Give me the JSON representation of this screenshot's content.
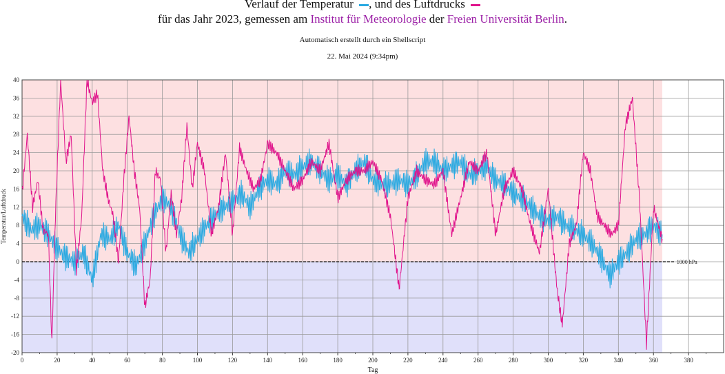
{
  "header": {
    "line1_part1": "Verlauf der Temperatur",
    "line1_part2": ", und des Luftdrucks",
    "line2_part1": "für das Jahr 2023, gemessen am",
    "line2_link1": "Institut für Meteorologie",
    "line2_part2": "der",
    "line2_link2": "Freien Universität Berlin",
    "line2_end": ".",
    "subtitle": "Automatisch erstellt durch ein Shellscript",
    "date": "22. Mai 2024 (9:34pm)"
  },
  "colors": {
    "temperature": "#29a9e1",
    "pressure": "#e0148c",
    "positive_bg": "#fde0e1",
    "negative_bg": "#e0e0fa",
    "link": "#9b1fa6"
  },
  "chart_data": {
    "type": "line",
    "title": "Verlauf der Temperatur, und des Luftdrucks",
    "xlabel": "Tag",
    "ylabel": "Temperatur/Luftdruck",
    "xlim": [
      0,
      400
    ],
    "ylim": [
      -20,
      40
    ],
    "x_ticks": [
      0,
      20,
      40,
      60,
      80,
      100,
      120,
      140,
      160,
      180,
      200,
      220,
      240,
      260,
      280,
      300,
      320,
      340,
      360,
      380
    ],
    "y_ticks": [
      -20,
      -16,
      -12,
      -8,
      -4,
      0,
      4,
      8,
      12,
      16,
      20,
      24,
      28,
      32,
      36,
      40
    ],
    "reference_line": {
      "y": 0,
      "label": "1000 hPa"
    },
    "grid": true,
    "series": [
      {
        "name": "Temperatur",
        "color": "#29a9e1",
        "x": [
          0,
          5,
          10,
          15,
          20,
          25,
          30,
          35,
          40,
          45,
          50,
          55,
          60,
          65,
          70,
          75,
          80,
          85,
          90,
          95,
          100,
          105,
          110,
          115,
          120,
          125,
          130,
          135,
          140,
          145,
          150,
          155,
          160,
          165,
          170,
          175,
          180,
          185,
          190,
          195,
          200,
          205,
          210,
          215,
          220,
          225,
          230,
          235,
          240,
          245,
          250,
          255,
          260,
          265,
          270,
          275,
          280,
          285,
          290,
          295,
          300,
          305,
          310,
          315,
          320,
          325,
          330,
          335,
          340,
          345,
          350,
          355,
          360,
          365
        ],
        "y": [
          10,
          7,
          8,
          6,
          3,
          1,
          0,
          2,
          -4,
          6,
          5,
          8,
          2,
          -1,
          4,
          10,
          14,
          12,
          6,
          2,
          5,
          8,
          10,
          12,
          13,
          15,
          12,
          16,
          18,
          17,
          20,
          19,
          21,
          22,
          20,
          18,
          19,
          17,
          20,
          22,
          18,
          17,
          17,
          18,
          17,
          19,
          22,
          22,
          20,
          21,
          22,
          19,
          20,
          21,
          18,
          17,
          15,
          14,
          12,
          10,
          9,
          10,
          8,
          7,
          6,
          4,
          1,
          -3,
          0,
          2,
          5,
          6,
          8,
          6
        ]
      },
      {
        "name": "Luftdruck",
        "color": "#e0148c",
        "x": [
          0,
          3,
          6,
          9,
          12,
          15,
          17,
          19,
          22,
          25,
          28,
          31,
          34,
          37,
          40,
          43,
          46,
          49,
          52,
          55,
          58,
          61,
          64,
          67,
          70,
          73,
          76,
          79,
          82,
          85,
          88,
          91,
          94,
          97,
          100,
          104,
          108,
          112,
          116,
          120,
          124,
          128,
          132,
          136,
          140,
          145,
          150,
          155,
          160,
          165,
          170,
          175,
          180,
          185,
          190,
          195,
          200,
          205,
          210,
          215,
          220,
          225,
          230,
          235,
          240,
          245,
          250,
          255,
          260,
          265,
          270,
          275,
          280,
          285,
          290,
          295,
          300,
          305,
          308,
          312,
          316,
          320,
          324,
          328,
          332,
          336,
          340,
          344,
          348,
          352,
          356,
          360,
          365
        ],
        "y": [
          15,
          28,
          12,
          18,
          7,
          6,
          -18,
          10,
          40,
          22,
          28,
          -2,
          10,
          40,
          35,
          37,
          20,
          14,
          10,
          0,
          18,
          32,
          20,
          12,
          -10,
          -4,
          20,
          18,
          2,
          15,
          6,
          14,
          30,
          16,
          26,
          20,
          6,
          12,
          24,
          6,
          25,
          20,
          16,
          18,
          26,
          24,
          20,
          16,
          18,
          22,
          20,
          26,
          14,
          18,
          20,
          20,
          22,
          18,
          10,
          -6,
          14,
          20,
          18,
          17,
          20,
          6,
          14,
          22,
          20,
          24,
          6,
          16,
          20,
          16,
          8,
          2,
          16,
          -6,
          -14,
          4,
          8,
          24,
          20,
          10,
          8,
          6,
          8,
          30,
          36,
          14,
          -18,
          12,
          5
        ]
      }
    ]
  }
}
